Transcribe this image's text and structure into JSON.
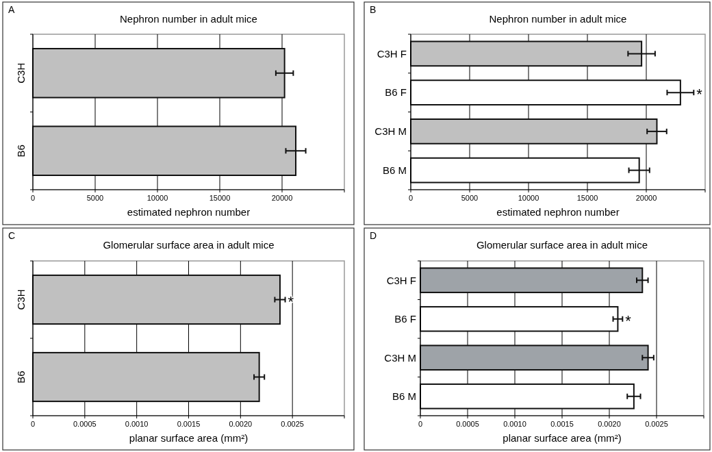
{
  "chart_data": [
    {
      "type": "bar",
      "orientation": "horizontal",
      "title": "Nephron number in adult mice",
      "xlabel": "estimated nephron number",
      "categories": [
        "C3H",
        "B6"
      ],
      "values": [
        20200,
        21100
      ],
      "errors": [
        700,
        800
      ],
      "colors": [
        "#c0c0c0",
        "#c0c0c0"
      ],
      "xlim": [
        0,
        25000
      ],
      "xticks": [
        0,
        5000,
        10000,
        15000,
        20000,
        {
          "value": 25000,
          "label": null
        }
      ],
      "grid": "x",
      "annotations": [
        "A"
      ]
    },
    {
      "type": "bar",
      "orientation": "horizontal",
      "title": "Nephron number in adult mice",
      "xlabel": "estimated nephron number",
      "categories": [
        "C3H F",
        "B6 F",
        "C3H M",
        "B6 M"
      ],
      "values": [
        19600,
        22900,
        20900,
        19400
      ],
      "errors": [
        1150,
        1130,
        830,
        880
      ],
      "colors": [
        "#c0c0c0",
        "#ffffff",
        "#c0c0c0",
        "#ffffff"
      ],
      "xlim": [
        0,
        25000
      ],
      "xticks": [
        0,
        5000,
        10000,
        15000,
        20000,
        {
          "value": 25000,
          "label": null
        }
      ],
      "grid": "x",
      "annotations": [
        "B",
        {
          "text": "*",
          "x": 22900,
          "y": "B6 F"
        }
      ]
    },
    {
      "type": "bar",
      "orientation": "horizontal",
      "title": "Glomerular surface area in adult mice",
      "xlabel": "planar surface area (mm²)",
      "categories": [
        "C3H",
        "B6"
      ],
      "values": [
        0.00238,
        0.00218
      ],
      "errors": [
        5e-05,
        5e-05
      ],
      "colors": [
        "#c0c0c0",
        "#c0c0c0"
      ],
      "xlim": [
        0,
        0.003
      ],
      "xticks": [
        0,
        {
          "value": 0.0005,
          "label": "0.0005"
        },
        {
          "value": 0.001,
          "label": "0.0010"
        },
        {
          "value": 0.0015,
          "label": "0.0015"
        },
        {
          "value": 0.002,
          "label": "0.0020"
        },
        {
          "value": 0.0025,
          "label": "0.0025"
        },
        {
          "value": 0.003,
          "label": null
        }
      ],
      "grid": "x",
      "annotations": [
        "C",
        {
          "text": "*",
          "x": 0.00238,
          "y": "C3H"
        }
      ]
    },
    {
      "type": "bar",
      "orientation": "horizontal",
      "title": "Glomerular surface area in adult mice",
      "xlabel": "planar surface area (mm²)",
      "categories": [
        "C3H F",
        "B6 F",
        "C3H M",
        "B6 M"
      ],
      "values": [
        0.00235,
        0.00209,
        0.00241,
        0.00226
      ],
      "errors": [
        6e-05,
        5e-05,
        6e-05,
        7e-05
      ],
      "colors": [
        "#9ea3a8",
        "#ffffff",
        "#9ea3a8",
        "#ffffff"
      ],
      "xlim": [
        0,
        0.003
      ],
      "xticks": [
        0,
        {
          "value": 0.0005,
          "label": "0.0005"
        },
        {
          "value": 0.001,
          "label": "0.0010"
        },
        {
          "value": 0.0015,
          "label": "0.0015"
        },
        {
          "value": 0.002,
          "label": "0.0020"
        },
        {
          "value": 0.0025,
          "label": "0.0025"
        },
        {
          "value": 0.003,
          "label": null
        }
      ],
      "grid": "x",
      "annotations": [
        "D",
        {
          "text": "*",
          "x": 0.00209,
          "y": "B6 F"
        }
      ]
    }
  ]
}
